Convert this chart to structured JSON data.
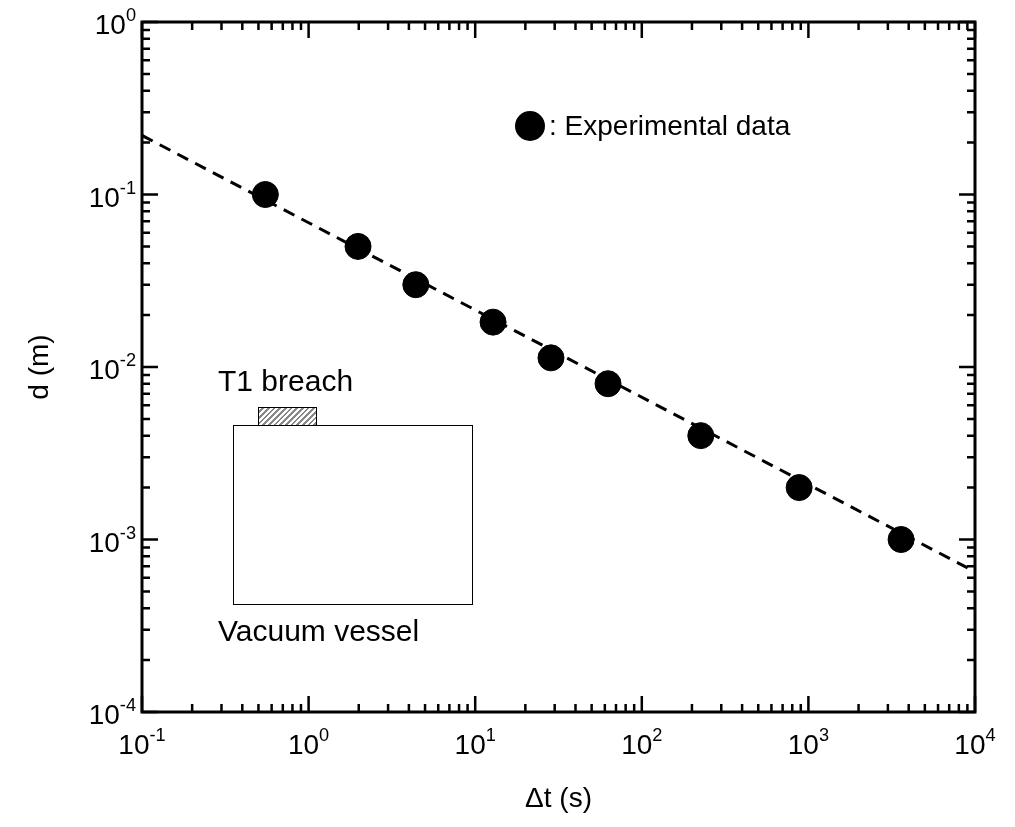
{
  "chart_data": {
    "type": "scatter",
    "xlabel": "Δt (s)",
    "ylabel": "d (m)",
    "log": "xy",
    "grid": false,
    "legend": "top right",
    "marker": "circle",
    "xlim": [
      0.1,
      10000
    ],
    "ylim": [
      0.0001,
      1
    ],
    "xticks": [
      {
        "value": 0.1,
        "label": "10$^{-1}$"
      },
      {
        "value": 1,
        "label": "10$^{0}$"
      },
      {
        "value": 10,
        "label": "10$^{1}$"
      },
      {
        "value": 100,
        "label": "10$^{2}$"
      },
      {
        "value": 1000,
        "label": "10$^{3}$"
      },
      {
        "value": 10000,
        "label": "10$^{4}$"
      }
    ],
    "yticks": [
      {
        "value": 0.0001,
        "label": "10$^{-4}$"
      },
      {
        "value": 0.001,
        "label": "10$^{-3}$"
      },
      {
        "value": 0.01,
        "label": "10$^{-2}$"
      },
      {
        "value": 0.1,
        "label": "10$^{-1}$"
      },
      {
        "value": 1,
        "label": "10$^{0}$"
      }
    ],
    "annotations": [
      "T1 breach",
      "Vacuum vessel"
    ],
    "series": [
      {
        "name": ": Experimental data",
        "color": "#000000",
        "x": [
          0.55,
          1.98,
          4.4,
          12.8,
          28.5,
          62.7,
          226,
          880,
          3600
        ],
        "values": [
          0.1,
          0.05,
          0.03,
          0.0182,
          0.0113,
          0.008,
          0.004,
          0.002,
          0.001
        ]
      },
      {
        "type": "line",
        "color": "#000000",
        "line_style": "dashed",
        "marker": "none",
        "x": [
          0.1,
          10000
        ],
        "values": [
          0.22,
          0.00065
        ]
      }
    ]
  }
}
